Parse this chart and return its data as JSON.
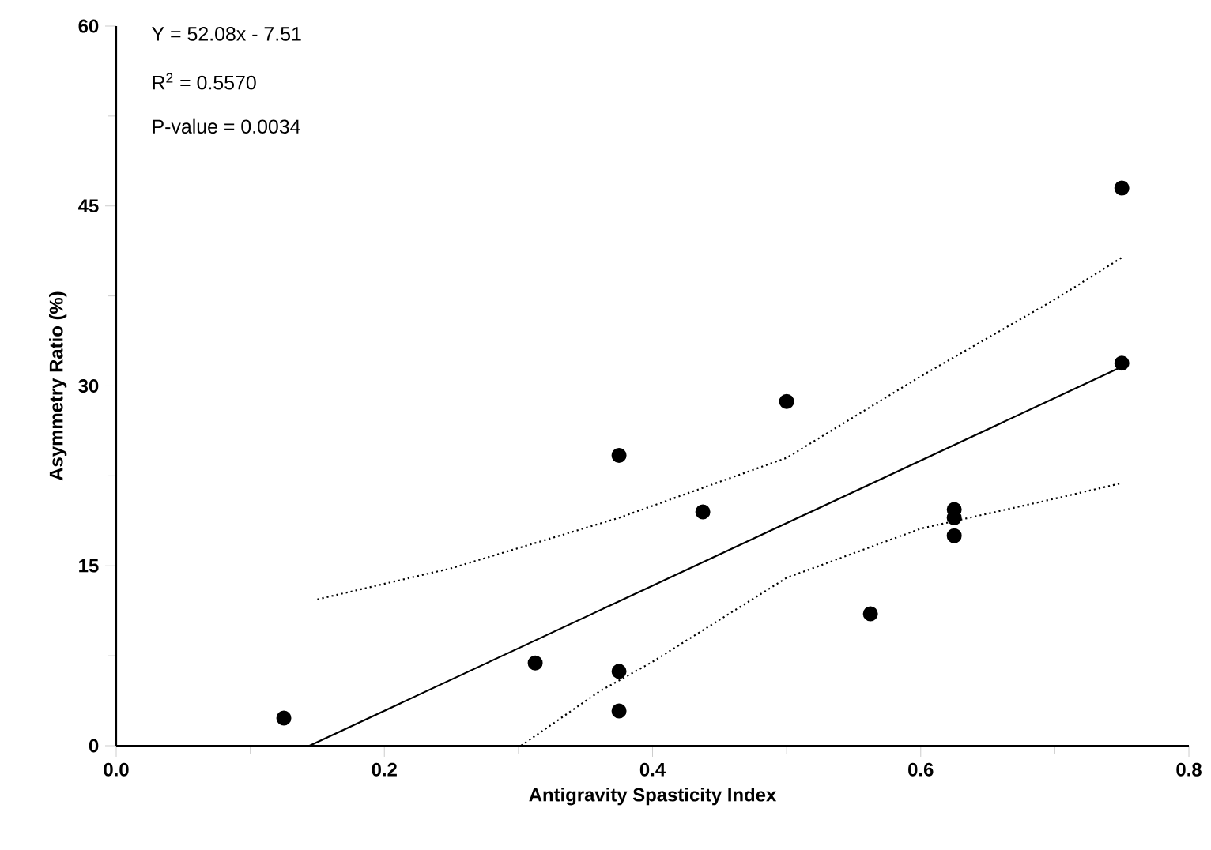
{
  "chart_data": {
    "type": "scatter",
    "xlabel": "Antigravity Spasticity Index",
    "ylabel": "Asymmetry Ratio (%)",
    "annotations": [
      "Y = 52.08x - 7.51",
      "R$^{2}$ = 0.5570",
      "P-value = 0.0034"
    ],
    "xlim": [
      0,
      0.8
    ],
    "ylim": [
      0,
      60
    ],
    "xticks": [
      {
        "value": 0,
        "label": "0.0"
      },
      {
        "value": 0.1,
        "label": null
      },
      {
        "value": 0.2,
        "label": "0.2"
      },
      {
        "value": 0.3,
        "label": null
      },
      {
        "value": 0.4,
        "label": "0.4"
      },
      {
        "value": 0.5,
        "label": null
      },
      {
        "value": 0.6,
        "label": "0.6"
      },
      {
        "value": 0.7,
        "label": null
      },
      {
        "value": 0.8,
        "label": "0.8"
      }
    ],
    "yticks": [
      0,
      {
        "value": 7.5,
        "label": null
      },
      15,
      {
        "value": 22.5,
        "label": null
      },
      30,
      {
        "value": 37.5,
        "label": null
      },
      45,
      {
        "value": 52.5,
        "label": null
      },
      60
    ],
    "marker": "circle",
    "series": [
      {
        "color": "#000000",
        "x": [
          0.125,
          0.3125,
          0.375,
          0.375,
          0.375,
          0.4375,
          0.5,
          0.5625,
          0.625,
          0.625,
          0.625,
          0.75,
          0.75
        ],
        "values": [
          2.3,
          6.9,
          6.2,
          2.9,
          24.2,
          19.5,
          28.7,
          11.0,
          19.7,
          19.0,
          17.5,
          46.5,
          31.9
        ]
      },
      {
        "type": "line",
        "color": "#000000",
        "marker": "none",
        "line_style": "solid",
        "x": [
          0.1442,
          0.75
        ],
        "values": [
          0,
          31.6
        ]
      },
      {
        "type": "line",
        "color": "#000000",
        "marker": "none",
        "line_style": "dotted",
        "x": [
          0.15,
          0.25,
          0.375,
          0.5,
          0.6,
          0.7,
          0.75
        ],
        "values": [
          12.2,
          14.8,
          19.0,
          24.0,
          30.8,
          37.2,
          40.7
        ]
      },
      {
        "type": "line",
        "color": "#000000",
        "marker": "none",
        "line_style": "dotted",
        "x": [
          0.302,
          0.36,
          0.4,
          0.5,
          0.6,
          0.7,
          0.75
        ],
        "values": [
          0,
          4.5,
          7.0,
          14.0,
          18.1,
          20.6,
          21.9
        ]
      }
    ]
  }
}
